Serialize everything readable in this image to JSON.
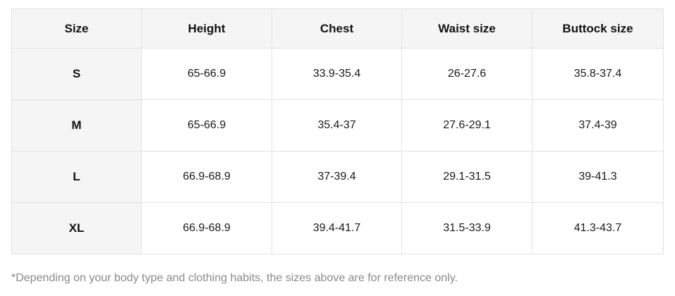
{
  "table": {
    "headers": [
      "Size",
      "Height",
      "Chest",
      "Waist size",
      "Buttock size"
    ],
    "rows": [
      [
        "S",
        "65-66.9",
        "33.9-35.4",
        "26-27.6",
        "35.8-37.4"
      ],
      [
        "M",
        "65-66.9",
        "35.4-37",
        "27.6-29.1",
        "37.4-39"
      ],
      [
        "L",
        "66.9-68.9",
        "37-39.4",
        "29.1-31.5",
        "39-41.3"
      ],
      [
        "XL",
        "66.9-68.9",
        "39.4-41.7",
        "31.5-33.9",
        "41.3-43.7"
      ]
    ]
  },
  "footnote": "*Depending on your body type and clothing habits, the sizes above are for reference only."
}
